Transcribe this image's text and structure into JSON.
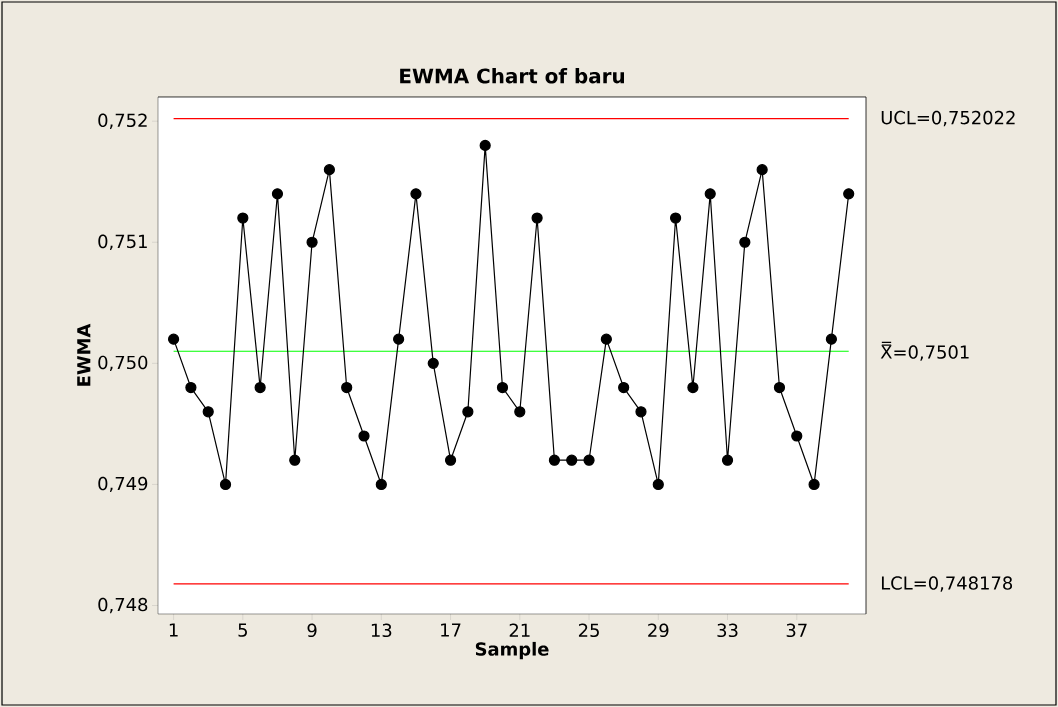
{
  "chart_data": {
    "type": "line",
    "title": "EWMA Chart of baru",
    "xlabel": "Sample",
    "ylabel": "EWMA",
    "x": [
      1,
      2,
      3,
      4,
      5,
      6,
      7,
      8,
      9,
      10,
      11,
      12,
      13,
      14,
      15,
      16,
      17,
      18,
      19,
      20,
      21,
      22,
      23,
      24,
      25,
      26,
      27,
      28,
      29,
      30,
      31,
      32,
      33,
      34,
      35,
      36,
      37,
      38,
      39,
      40
    ],
    "series": [
      {
        "color": "#000000",
        "values": [
          0.7502,
          0.7498,
          0.7496,
          0.749,
          0.7512,
          0.7498,
          0.7514,
          0.7492,
          0.751,
          0.7516,
          0.7498,
          0.7494,
          0.749,
          0.7502,
          0.7514,
          0.75,
          0.7492,
          0.7496,
          0.7518,
          0.7498,
          0.7496,
          0.7512,
          0.7492,
          0.7492,
          0.7492,
          0.7502,
          0.7498,
          0.7496,
          0.749,
          0.7512,
          0.7498,
          0.7514,
          0.7492,
          0.751,
          0.7516,
          0.7498,
          0.7494,
          0.749,
          0.7502,
          0.7514
        ]
      }
    ],
    "xlim": [
      0.1,
      41
    ],
    "ylim": [
      0.74793,
      0.7522
    ],
    "xticks": [
      1,
      5,
      9,
      13,
      17,
      21,
      25,
      29,
      33,
      37
    ],
    "yticks": [
      {
        "value": 0.748,
        "label": "0,748"
      },
      {
        "value": 0.749,
        "label": "0,749"
      },
      {
        "value": 0.75,
        "label": "0,750"
      },
      {
        "value": 0.751,
        "label": "0,751"
      },
      {
        "value": 0.752,
        "label": "0,752"
      }
    ],
    "ref_lines": [
      {
        "axis": "y",
        "value": 0.752022,
        "label": "UCL=0,752022",
        "color": "#ff0000"
      },
      {
        "axis": "y",
        "value": 0.7501,
        "label": "X̿=0,7501",
        "color": "#00ff00"
      },
      {
        "axis": "y",
        "value": 0.748178,
        "label": "LCL=0,748178",
        "color": "#ff0000"
      }
    ],
    "grid": false,
    "marker": "circle",
    "line_style": "solid"
  }
}
